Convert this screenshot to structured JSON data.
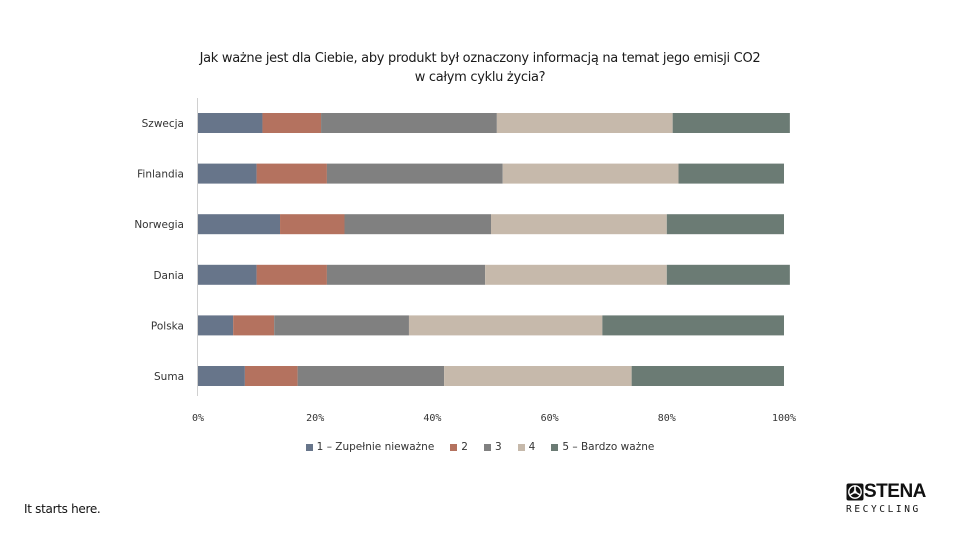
{
  "chart_data": {
    "type": "bar",
    "orientation": "horizontal",
    "stacked": "percent",
    "title_lines": [
      "Jak ważne jest dla Ciebie, aby produkt był oznaczony informacją na temat jego emisji CO2",
      "w całym cyklu życia?"
    ],
    "categories": [
      "Szwecja",
      "Finlandia",
      "Norwegia",
      "Dania",
      "Polska",
      "Suma"
    ],
    "series": [
      {
        "name": "1 – Zupełnie nieważne",
        "color": "#67758a",
        "values": [
          11,
          10,
          14,
          10,
          6,
          8
        ]
      },
      {
        "name": "2",
        "color": "#b4725f",
        "values": [
          10,
          12,
          11,
          12,
          7,
          9
        ]
      },
      {
        "name": "3",
        "color": "#808080",
        "values": [
          30,
          30,
          25,
          27,
          23,
          25
        ]
      },
      {
        "name": "4",
        "color": "#c6b9ab",
        "values": [
          30,
          30,
          30,
          31,
          33,
          32
        ]
      },
      {
        "name": "5 – Bardzo ważne",
        "color": "#6b7b74",
        "values": [
          20,
          18,
          20,
          21,
          31,
          26
        ]
      }
    ],
    "x_ticks": [
      "0%",
      "20%",
      "40%",
      "60%",
      "80%",
      "100%"
    ],
    "xlim": [
      0,
      100
    ],
    "xlabel": "",
    "ylabel": "",
    "grid": false,
    "legend_position": "bottom"
  },
  "footer": {
    "tagline": "It starts here.",
    "logo_name": "STENA",
    "logo_sub": "RECYCLING"
  }
}
